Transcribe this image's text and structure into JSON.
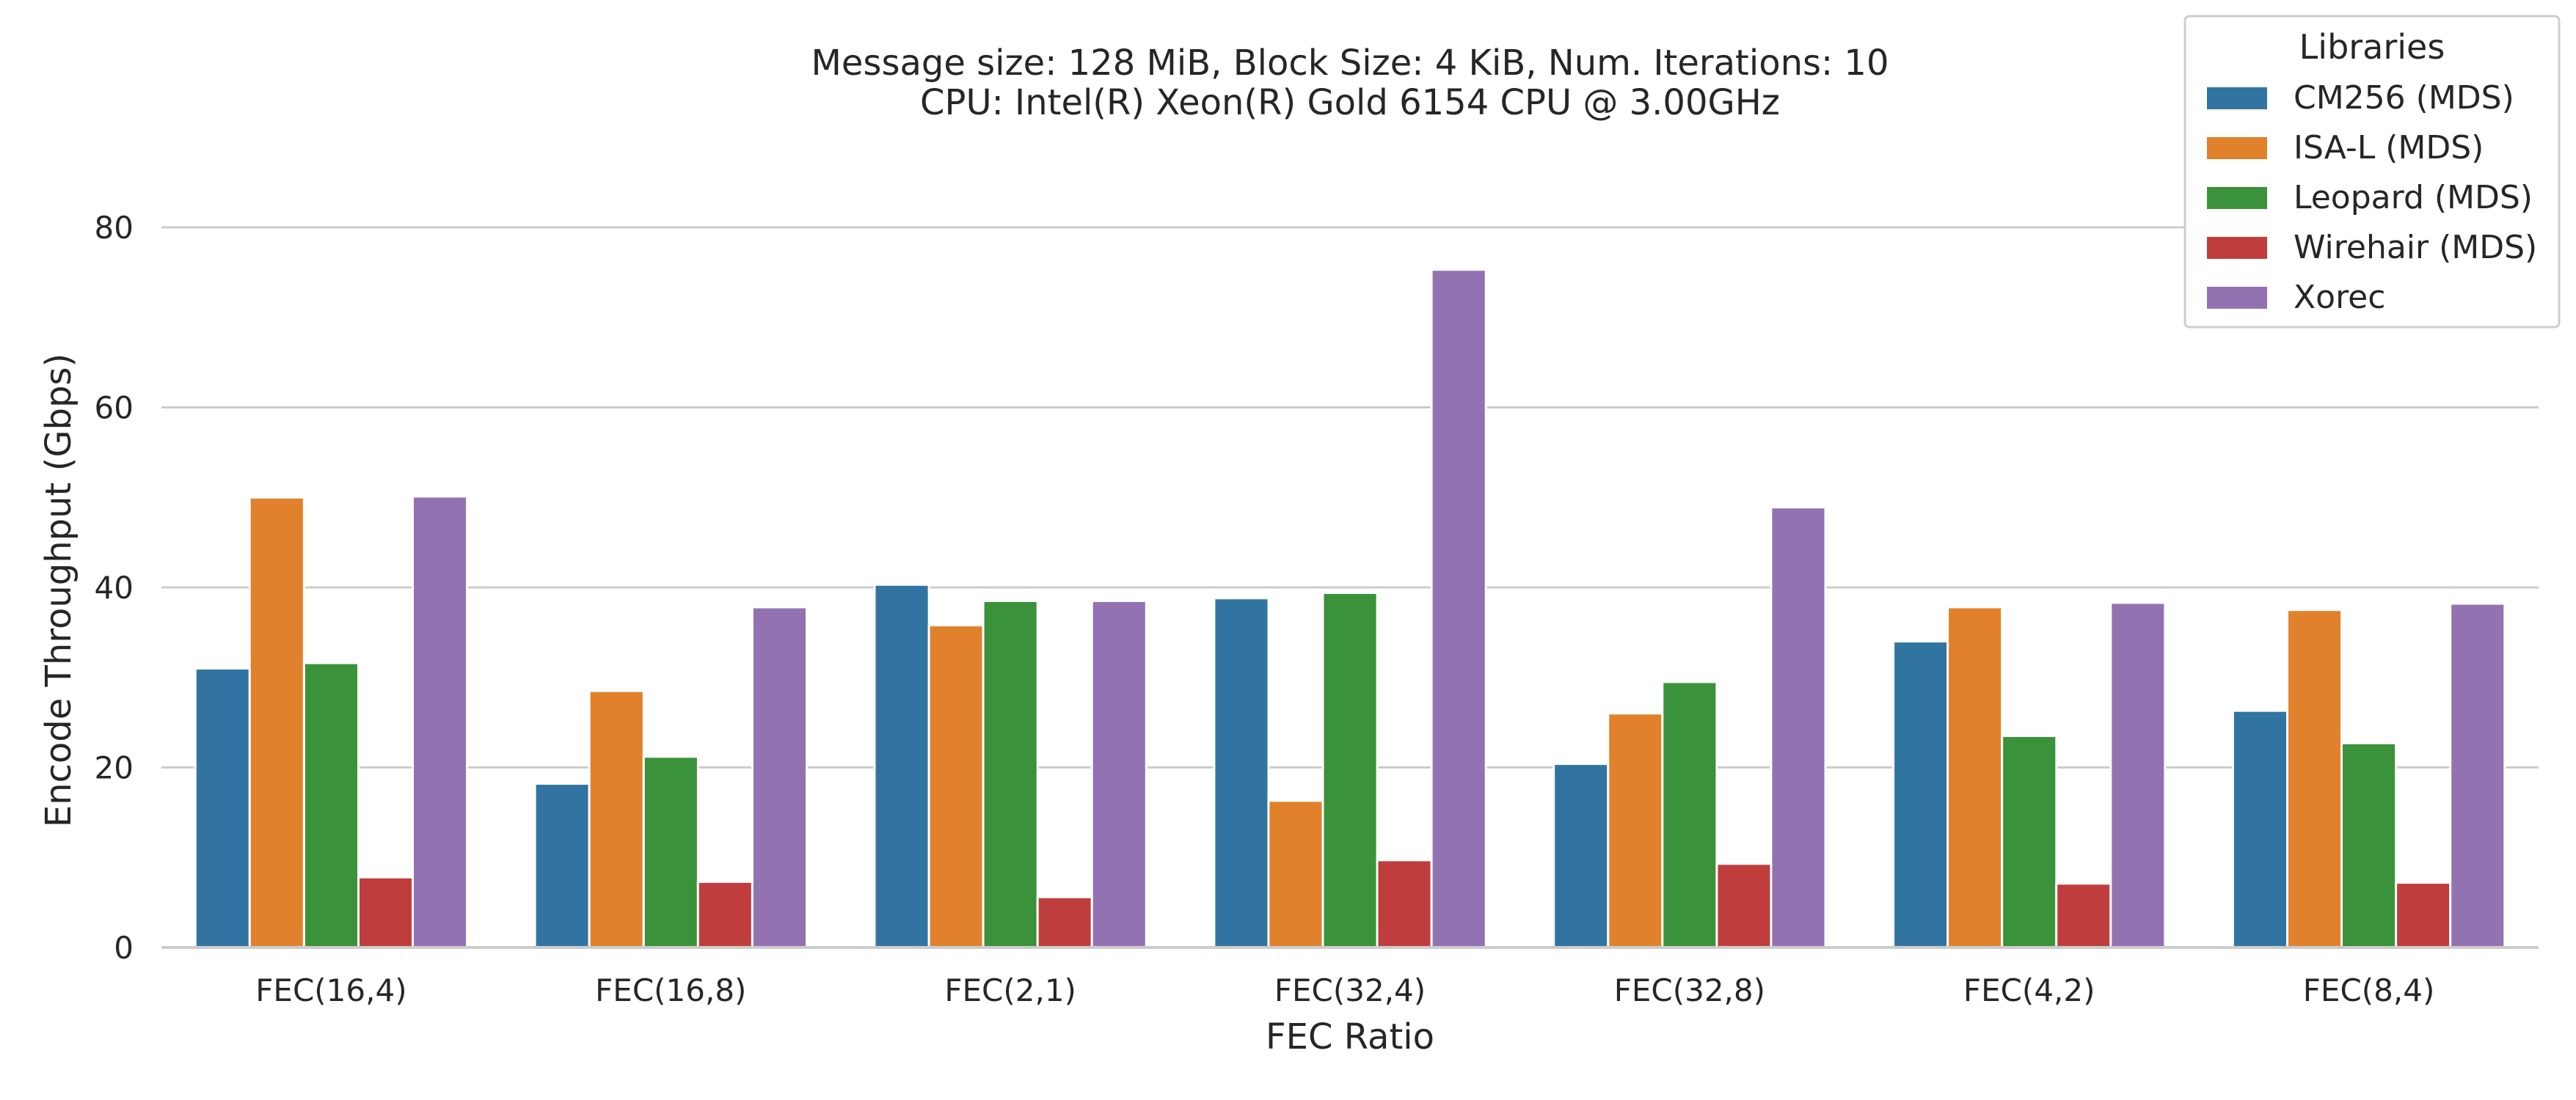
{
  "chart_data": {
    "type": "bar",
    "title_line1": "Message size: 128 MiB, Block Size: 4 KiB, Num. Iterations: 10",
    "title_line2": "CPU: Intel(R) Xeon(R) Gold 6154 CPU @ 3.00GHz",
    "xlabel": "FEC Ratio",
    "ylabel": "Encode Throughput (Gbps)",
    "ylim": [
      0,
      90
    ],
    "yticks": [
      0,
      20,
      40,
      60,
      80
    ],
    "grid": "horizontal",
    "legend_title": "Libraries",
    "legend_position": "top-right",
    "categories": [
      "FEC(16,4)",
      "FEC(16,8)",
      "FEC(2,1)",
      "FEC(32,4)",
      "FEC(32,8)",
      "FEC(4,2)",
      "FEC(8,4)"
    ],
    "series": [
      {
        "name": "CM256 (MDS)",
        "color": "#3274a1",
        "values": [
          31.0,
          18.2,
          40.3,
          38.8,
          20.4,
          34.0,
          26.3
        ]
      },
      {
        "name": "ISA-L (MDS)",
        "color": "#e1812c",
        "values": [
          50.0,
          28.5,
          35.8,
          16.3,
          26.0,
          37.8,
          37.5
        ]
      },
      {
        "name": "Leopard (MDS)",
        "color": "#3a923a",
        "values": [
          31.6,
          21.2,
          38.5,
          39.4,
          29.5,
          23.5,
          22.7
        ]
      },
      {
        "name": "Wirehair (MDS)",
        "color": "#c03d3e",
        "values": [
          7.8,
          7.3,
          5.6,
          9.7,
          9.3,
          7.1,
          7.2
        ]
      },
      {
        "name": "Xorec",
        "color": "#9372b2",
        "values": [
          50.1,
          37.8,
          38.5,
          75.3,
          48.9,
          38.3,
          38.2
        ]
      }
    ]
  }
}
